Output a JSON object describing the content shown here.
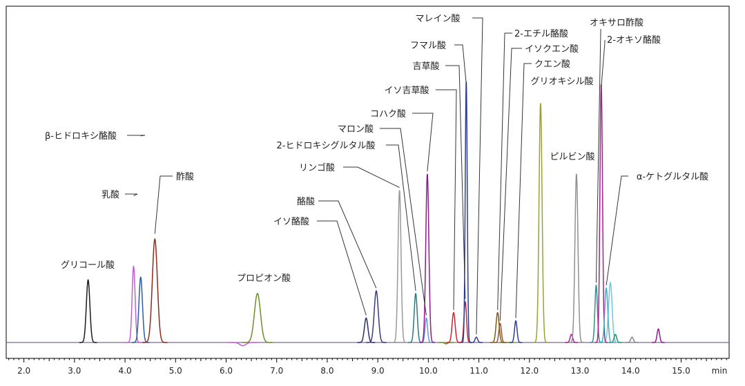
{
  "chart_data": {
    "type": "line",
    "title": "",
    "xlabel": "min",
    "ylabel": "",
    "xlim": [
      1.65,
      15.95
    ],
    "ylim": [
      0,
      100
    ],
    "x_ticks": [
      "2.0",
      "3.0",
      "4.0",
      "5.0",
      "6.0",
      "7.0",
      "8.0",
      "9.0",
      "10.0",
      "11.0",
      "12.0",
      "13.0",
      "14.0",
      "15.0"
    ],
    "grid": false,
    "baseline": 2,
    "peaks": [
      {
        "name": "グリコール酸",
        "rt": 3.27,
        "height": 25,
        "width": 0.035,
        "color": "#1a1a1a",
        "label_at": [
          3.27,
          30
        ]
      },
      {
        "name": "乳酸",
        "rt": 4.17,
        "height": 30,
        "width": 0.03,
        "color": "#c060d0",
        "label_at": [
          4.17,
          56
        ]
      },
      {
        "name": "β-ヒドロキシ酪酸",
        "rt": 4.31,
        "height": 26,
        "width": 0.035,
        "color": "#2c5aa0",
        "label_at": [
          4.31,
          78
        ]
      },
      {
        "name": "酢酸",
        "rt": 4.59,
        "height": 40,
        "width": 0.05,
        "color": "#8b2a1a",
        "label_at": [
          4.59,
          42
        ]
      },
      {
        "name": "プロピオン酸",
        "rt": 6.62,
        "height": 20,
        "width": 0.06,
        "color": "#6b8e2a",
        "label_at": [
          6.62,
          21
        ]
      },
      {
        "name": "イソ酪酸",
        "rt": 8.77,
        "height": 11,
        "width": 0.035,
        "color": "#2a2a6a",
        "label_at": [
          8.77,
          12
        ]
      },
      {
        "name": "酪酸",
        "rt": 8.97,
        "height": 21,
        "width": 0.04,
        "color": "#3a3a7a",
        "label_at": [
          8.97,
          22
        ]
      },
      {
        "name": "リンゴ酸",
        "rt": 9.43,
        "height": 58,
        "width": 0.03,
        "color": "#999999",
        "label_at": [
          9.43,
          59
        ]
      },
      {
        "name": "2-ヒドロキシグルタル酸",
        "rt": 9.75,
        "height": 20,
        "width": 0.03,
        "color": "#2a7a7a",
        "label_at": [
          9.75,
          21
        ]
      },
      {
        "name": "マロン酸",
        "rt": 9.96,
        "height": 11,
        "width": 0.025,
        "color": "#6699cc",
        "label_at": [
          9.96,
          12
        ]
      },
      {
        "name": "コハク酸",
        "rt": 9.98,
        "height": 64,
        "width": 0.03,
        "color": "#8e1a8e",
        "label_at": [
          9.98,
          65
        ]
      },
      {
        "name": "イソ吉草酸",
        "rt": 10.5,
        "height": 13,
        "width": 0.03,
        "color": "#cc2233",
        "label_at": [
          10.5,
          14
        ]
      },
      {
        "name": "吉草酸",
        "rt": 10.73,
        "height": 17,
        "width": 0.025,
        "color": "#cc2233",
        "label_at": [
          10.73,
          18
        ]
      },
      {
        "name": "フマル酸",
        "rt": 10.75,
        "height": 98,
        "width": 0.02,
        "color": "#2c3e8c",
        "label_at": [
          10.75,
          97
        ]
      },
      {
        "name": "マレイン酸",
        "rt": 10.95,
        "height": 4,
        "width": 0.025,
        "color": "#2c3e8c",
        "label_at": [
          10.95,
          5
        ]
      },
      {
        "name": "2-エチル酪酸",
        "rt": 11.37,
        "height": 13,
        "width": 0.03,
        "color": "#7a5a1a",
        "label_at": [
          11.37,
          14
        ]
      },
      {
        "name": "イソクエン酸",
        "rt": 11.42,
        "height": 9,
        "width": 0.025,
        "color": "#a0522d",
        "label_at": [
          11.42,
          10
        ]
      },
      {
        "name": "クエン酸",
        "rt": 11.73,
        "height": 10,
        "width": 0.025,
        "color": "#2c3e8c",
        "label_at": [
          11.73,
          11
        ]
      },
      {
        "name": "グリオキシル酸",
        "rt": 12.22,
        "height": 90,
        "width": 0.03,
        "color": "#9aa030",
        "label_at": [
          12.22,
          88
        ]
      },
      {
        "name": "ピルビン酸",
        "rt": 12.93,
        "height": 64,
        "width": 0.03,
        "color": "#909090",
        "label_at": [
          12.93,
          65
        ]
      },
      {
        "name": "オキサロ酢酸",
        "rt": 13.32,
        "height": 23,
        "width": 0.025,
        "color": "#3a8a8a",
        "label_at": [
          13.32,
          24
        ]
      },
      {
        "name": "2-オキソ酪酸",
        "rt": 13.42,
        "height": 97,
        "width": 0.025,
        "color": "#a0228e",
        "label_at": [
          13.42,
          96
        ]
      },
      {
        "name": "α-ケトグルタル酸",
        "rt": 13.52,
        "height": 22,
        "width": 0.03,
        "color": "#40b0c0",
        "label_at": [
          13.52,
          23
        ]
      }
    ],
    "minor_peaks": [
      {
        "rt": 12.83,
        "height": 5,
        "width": 0.025,
        "color": "#a0228e"
      },
      {
        "rt": 13.6,
        "height": 24,
        "width": 0.035,
        "color": "#70c8d8"
      },
      {
        "rt": 13.7,
        "height": 5,
        "width": 0.025,
        "color": "#2a8a6a"
      },
      {
        "rt": 14.03,
        "height": 4,
        "width": 0.025,
        "color": "#888888"
      },
      {
        "rt": 14.55,
        "height": 7,
        "width": 0.025,
        "color": "#8e1a8e"
      },
      {
        "rt": 11.55,
        "height": 2,
        "width": 0.03,
        "color": "#6b8e2a"
      },
      {
        "rt": 10.35,
        "height": 1.5,
        "width": 0.03,
        "color": "#6b8e2a"
      },
      {
        "rt": 6.33,
        "height": 0.8,
        "width": 0.06,
        "color": "#c060d0"
      }
    ]
  }
}
